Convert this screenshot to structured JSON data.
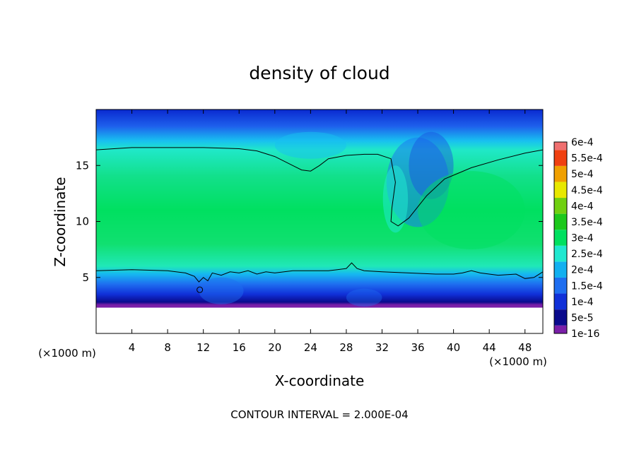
{
  "chart_data": {
    "type": "heatmap",
    "title": "density of cloud",
    "xlabel": "X-coordinate",
    "ylabel": "Z-coordinate",
    "x_unit": "(×1000 m)",
    "z_unit": "(×1000 m)",
    "footer": "CONTOUR INTERVAL = 2.000E-04",
    "xlim": [
      0,
      50
    ],
    "ylim": [
      0,
      20
    ],
    "x_ticks": [
      4,
      8,
      12,
      16,
      20,
      24,
      28,
      32,
      36,
      40,
      44,
      48
    ],
    "y_ticks": [
      5,
      10,
      15
    ],
    "contour_level": 0.0002,
    "colorbar": {
      "levels": [
        "1e-16",
        "5e-5",
        "1e-4",
        "1.5e-4",
        "2e-4",
        "2.5e-4",
        "3e-4",
        "3.5e-4",
        "4e-4",
        "4.5e-4",
        "5e-4",
        "5.5e-4",
        "6e-4"
      ],
      "colors": [
        "#7a1fa8",
        "#0a0a8c",
        "#1030d8",
        "#1e6ef0",
        "#12b0f0",
        "#20e8d0",
        "#00e060",
        "#1cc81c",
        "#70d010",
        "#e8e800",
        "#f0a000",
        "#f04010",
        "#f07070"
      ]
    },
    "contours": [
      {
        "name": "upper",
        "points": [
          [
            0,
            16.4
          ],
          [
            4,
            16.6
          ],
          [
            8,
            16.6
          ],
          [
            12,
            16.6
          ],
          [
            16,
            16.5
          ],
          [
            18,
            16.3
          ],
          [
            20,
            15.8
          ],
          [
            22,
            15.0
          ],
          [
            23,
            14.6
          ],
          [
            24,
            14.5
          ],
          [
            25,
            15.0
          ],
          [
            26,
            15.6
          ],
          [
            28,
            15.9
          ],
          [
            30,
            16.0
          ],
          [
            31.5,
            16.0
          ],
          [
            33,
            15.6
          ],
          [
            33.5,
            13.5
          ],
          [
            33.1,
            11.2
          ],
          [
            33.0,
            10.0
          ],
          [
            33.8,
            9.6
          ],
          [
            35,
            10.3
          ],
          [
            37,
            12.3
          ],
          [
            39,
            13.8
          ],
          [
            42,
            14.8
          ],
          [
            45,
            15.5
          ],
          [
            48,
            16.1
          ],
          [
            50,
            16.4
          ]
        ]
      },
      {
        "name": "lower",
        "points": [
          [
            0,
            5.6
          ],
          [
            4,
            5.7
          ],
          [
            8,
            5.6
          ],
          [
            10,
            5.4
          ],
          [
            11,
            5.1
          ],
          [
            11.5,
            4.6
          ],
          [
            12,
            5.0
          ],
          [
            12.5,
            4.7
          ],
          [
            13,
            5.4
          ],
          [
            14,
            5.2
          ],
          [
            15,
            5.5
          ],
          [
            16,
            5.4
          ],
          [
            17,
            5.6
          ],
          [
            18,
            5.3
          ],
          [
            19,
            5.5
          ],
          [
            20,
            5.4
          ],
          [
            22,
            5.6
          ],
          [
            24,
            5.6
          ],
          [
            26,
            5.6
          ],
          [
            27,
            5.7
          ],
          [
            28,
            5.8
          ],
          [
            28.6,
            6.3
          ],
          [
            29.2,
            5.8
          ],
          [
            30,
            5.6
          ],
          [
            32,
            5.5
          ],
          [
            35,
            5.4
          ],
          [
            38,
            5.3
          ],
          [
            40,
            5.3
          ],
          [
            41,
            5.4
          ],
          [
            42,
            5.6
          ],
          [
            43,
            5.4
          ],
          [
            45,
            5.2
          ],
          [
            47,
            5.3
          ],
          [
            48,
            4.9
          ],
          [
            49,
            5.0
          ],
          [
            50,
            5.5
          ]
        ]
      }
    ],
    "small_contour": {
      "x": 11.6,
      "z": 3.9
    },
    "surface_height": 2.3
  }
}
